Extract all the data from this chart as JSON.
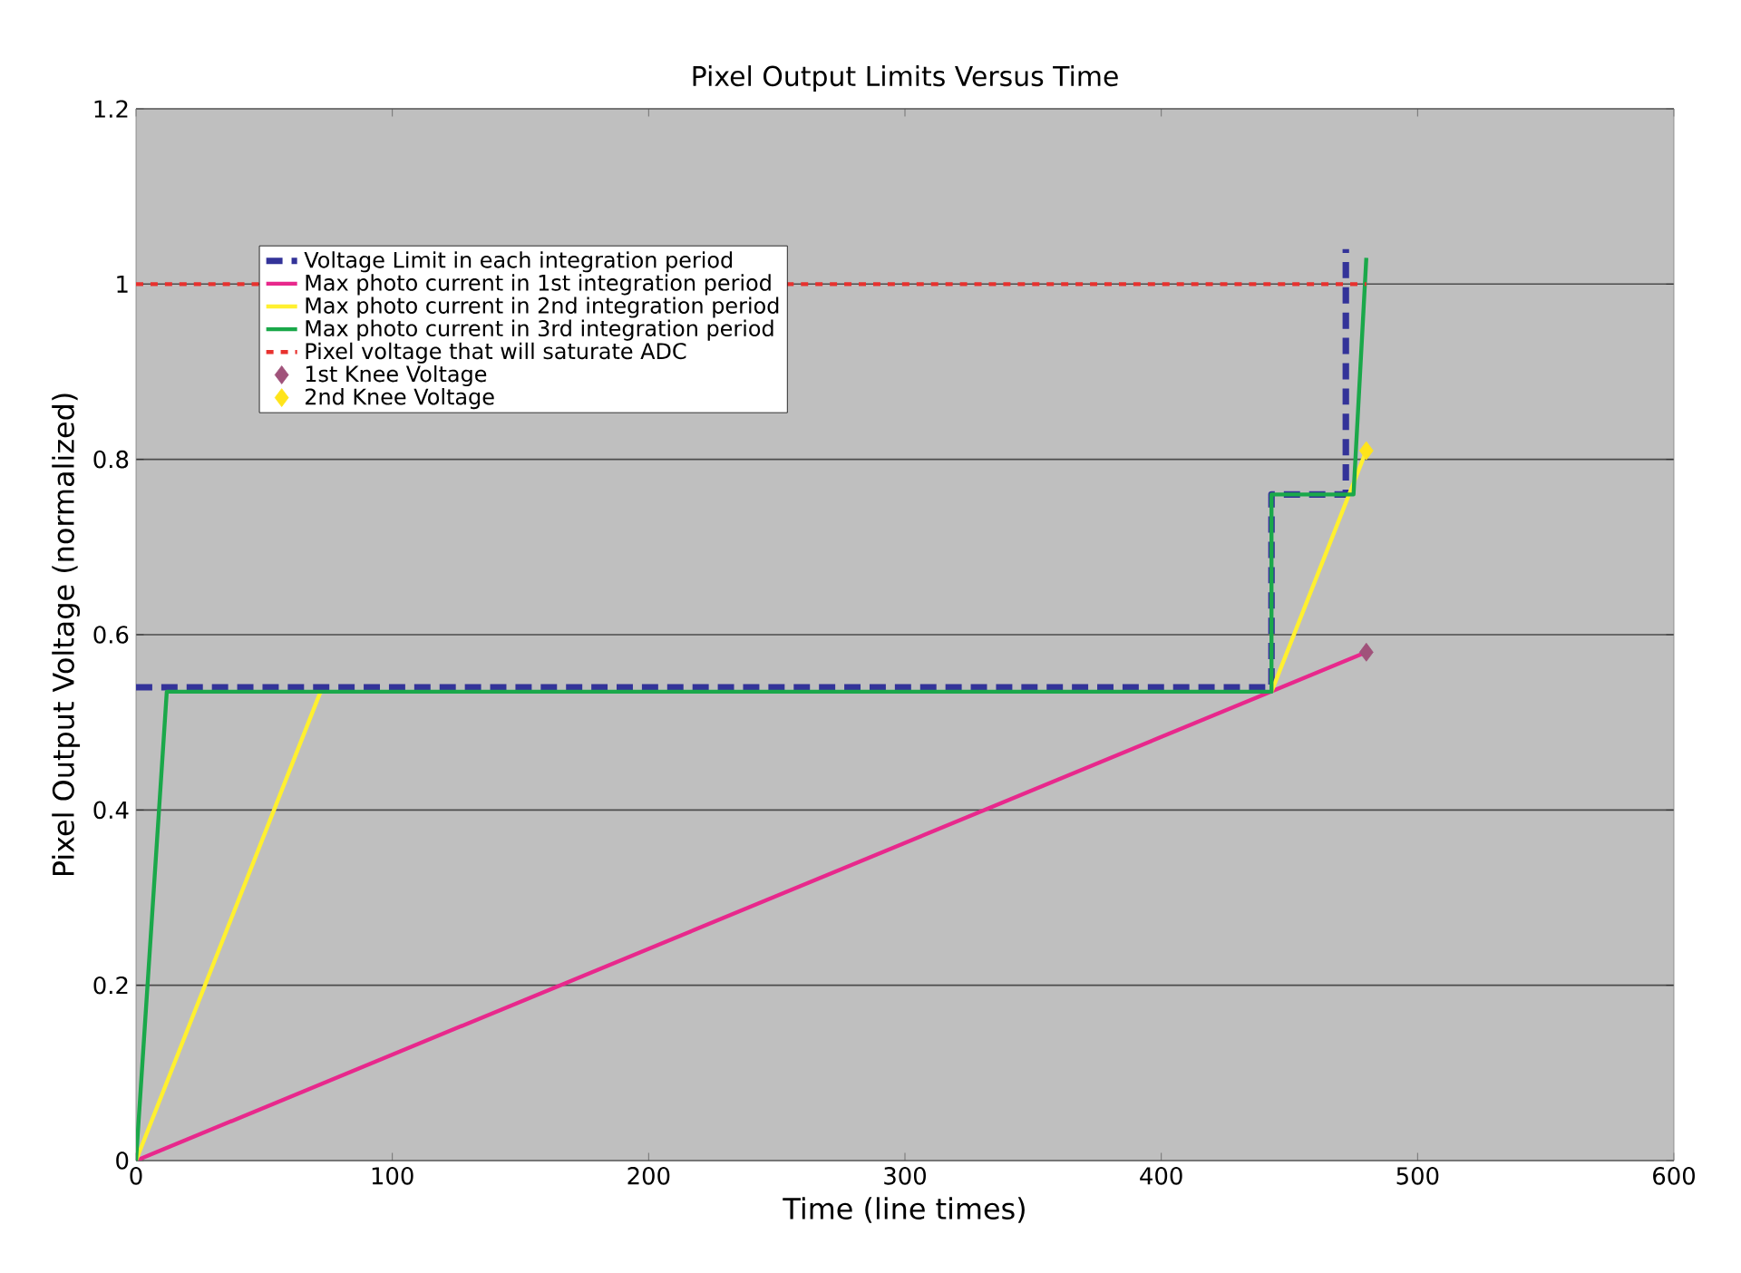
{
  "chart_data": {
    "type": "line",
    "title": "Pixel Output Limits Versus Time",
    "xlabel": "Time (line times)",
    "ylabel": "Pixel Output Voltage (normalized)",
    "xlim": [
      0,
      600
    ],
    "xticks": [
      0,
      100,
      200,
      300,
      400,
      500,
      600
    ],
    "ylim": [
      0,
      1.2
    ],
    "yticks": [
      0,
      0.2,
      0.4,
      0.6,
      0.8,
      1,
      1.2
    ],
    "grid": "y",
    "legend": "top left",
    "marker": "none",
    "series": [
      {
        "name": "Voltage Limit in each integration period",
        "color": "#333399",
        "line_style": "dashed",
        "x": [
          0,
          443,
          443,
          472,
          472
        ],
        "values": [
          0.54,
          0.54,
          0.76,
          0.76,
          1.04
        ]
      },
      {
        "name": "Max photo current in 1st integration period",
        "color": "#e8288c",
        "line_style": "solid",
        "x": [
          0,
          480
        ],
        "values": [
          0,
          0.58
        ]
      },
      {
        "name": "Max photo current in 2nd integration period",
        "color": "#fff030",
        "line_style": "solid",
        "x": [
          0,
          72,
          300,
          443,
          480
        ],
        "values": [
          0,
          0.535,
          null,
          0.535,
          0.81
        ]
      },
      {
        "name": "Max photo current in 3rd integration period",
        "color": "#1aa84a",
        "line_style": "solid",
        "x": [
          0,
          12,
          443,
          443,
          475,
          480
        ],
        "values": [
          0,
          0.535,
          0.535,
          0.76,
          0.76,
          1.03
        ]
      },
      {
        "name": "Pixel voltage that will saturate ADC",
        "color": "#e8312e",
        "line_style": "dotted",
        "x": [
          0,
          480
        ],
        "values": [
          1,
          1
        ]
      },
      {
        "name": "1st Knee Voltage",
        "type": "scatter",
        "marker": "diamond",
        "color": "#a0527a",
        "x": [
          480
        ],
        "values": [
          0.58
        ]
      },
      {
        "name": "2nd Knee Voltage",
        "type": "scatter",
        "marker": "diamond",
        "color": "#ffe41a",
        "x": [
          480
        ],
        "values": [
          0.81
        ]
      }
    ]
  }
}
